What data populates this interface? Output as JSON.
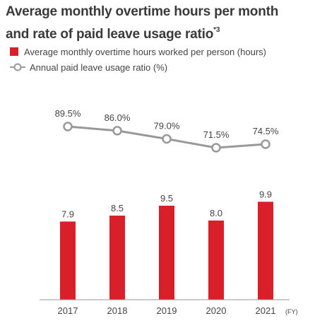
{
  "title": {
    "line1": "Average monthly overtime hours per month",
    "line2": "and rate of paid leave usage ratio",
    "footnote": "*3"
  },
  "legend": {
    "bar_label": "Average monthly overtime hours worked per person (hours)",
    "line_label": "Annual paid leave usage ratio (%)"
  },
  "colors": {
    "bar": "#d9202a",
    "line": "#999999",
    "marker_fill": "#ffffff",
    "axis": "#999999",
    "text": "#444444"
  },
  "chart_data": {
    "type": "bar",
    "categories": [
      "2017",
      "2018",
      "2019",
      "2020",
      "2021"
    ],
    "x_unit": "(FY)",
    "series": [
      {
        "name": "Average monthly overtime hours worked per person (hours)",
        "type": "bar",
        "values": [
          7.9,
          8.5,
          9.5,
          8.0,
          9.9
        ],
        "labels": [
          "7.9",
          "8.5",
          "9.5",
          "8.0",
          "9.9"
        ]
      },
      {
        "name": "Annual paid leave usage ratio (%)",
        "type": "line",
        "values": [
          89.5,
          86.0,
          79.0,
          71.5,
          74.5
        ],
        "labels": [
          "89.5%",
          "86.0%",
          "79.0%",
          "71.5%",
          "74.5%"
        ]
      }
    ]
  }
}
